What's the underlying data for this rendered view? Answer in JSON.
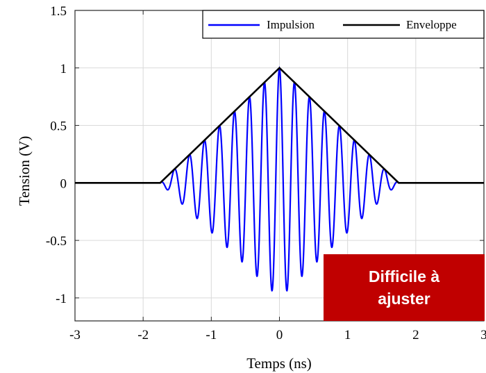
{
  "chart_data": {
    "type": "line",
    "title": "",
    "xlabel": "Temps (ns)",
    "ylabel": "Tension (V)",
    "xlim": [
      -3,
      3
    ],
    "ylim": [
      -1.2,
      1.5
    ],
    "xticks": [
      -3,
      -2,
      -1,
      0,
      1,
      2,
      3
    ],
    "xtick_labels": [
      "-3",
      "-2",
      "-1",
      "0",
      "1",
      "2",
      "3"
    ],
    "yticks": [
      -1,
      -0.5,
      0,
      0.5,
      1,
      1.5
    ],
    "ytick_labels": [
      "-1",
      "-0.5",
      "0",
      "0.5",
      "1",
      "1.5"
    ],
    "grid": true,
    "legend_position": "top-right",
    "series": [
      {
        "name": "Impulsion",
        "color": "#0000ff",
        "description_values": {
          "x": [
            -3,
            -1.75,
            -1.55,
            -1.2,
            -0.9,
            -0.6,
            -0.3,
            0,
            0.3,
            0.6,
            0.9,
            1.2,
            1.55,
            1.75,
            3
          ],
          "y": [
            0,
            0,
            0.12,
            0.36,
            0.5,
            0.62,
            0.75,
            1.0,
            0.75,
            0.62,
            0.5,
            0.36,
            0.12,
            0,
            0
          ]
        },
        "envelope_peak_ns": 0,
        "half_width_ns": 1.75,
        "oscillation_period_ns": 0.22
      },
      {
        "name": "Enveloppe",
        "color": "#000000",
        "x": [
          -3,
          -1.75,
          0,
          1.75,
          3
        ],
        "y": [
          0,
          0,
          1,
          0,
          0
        ]
      }
    ],
    "annotation": {
      "text": "Difficile à ajuster",
      "background": "#c00000",
      "color": "#ffffff"
    }
  }
}
